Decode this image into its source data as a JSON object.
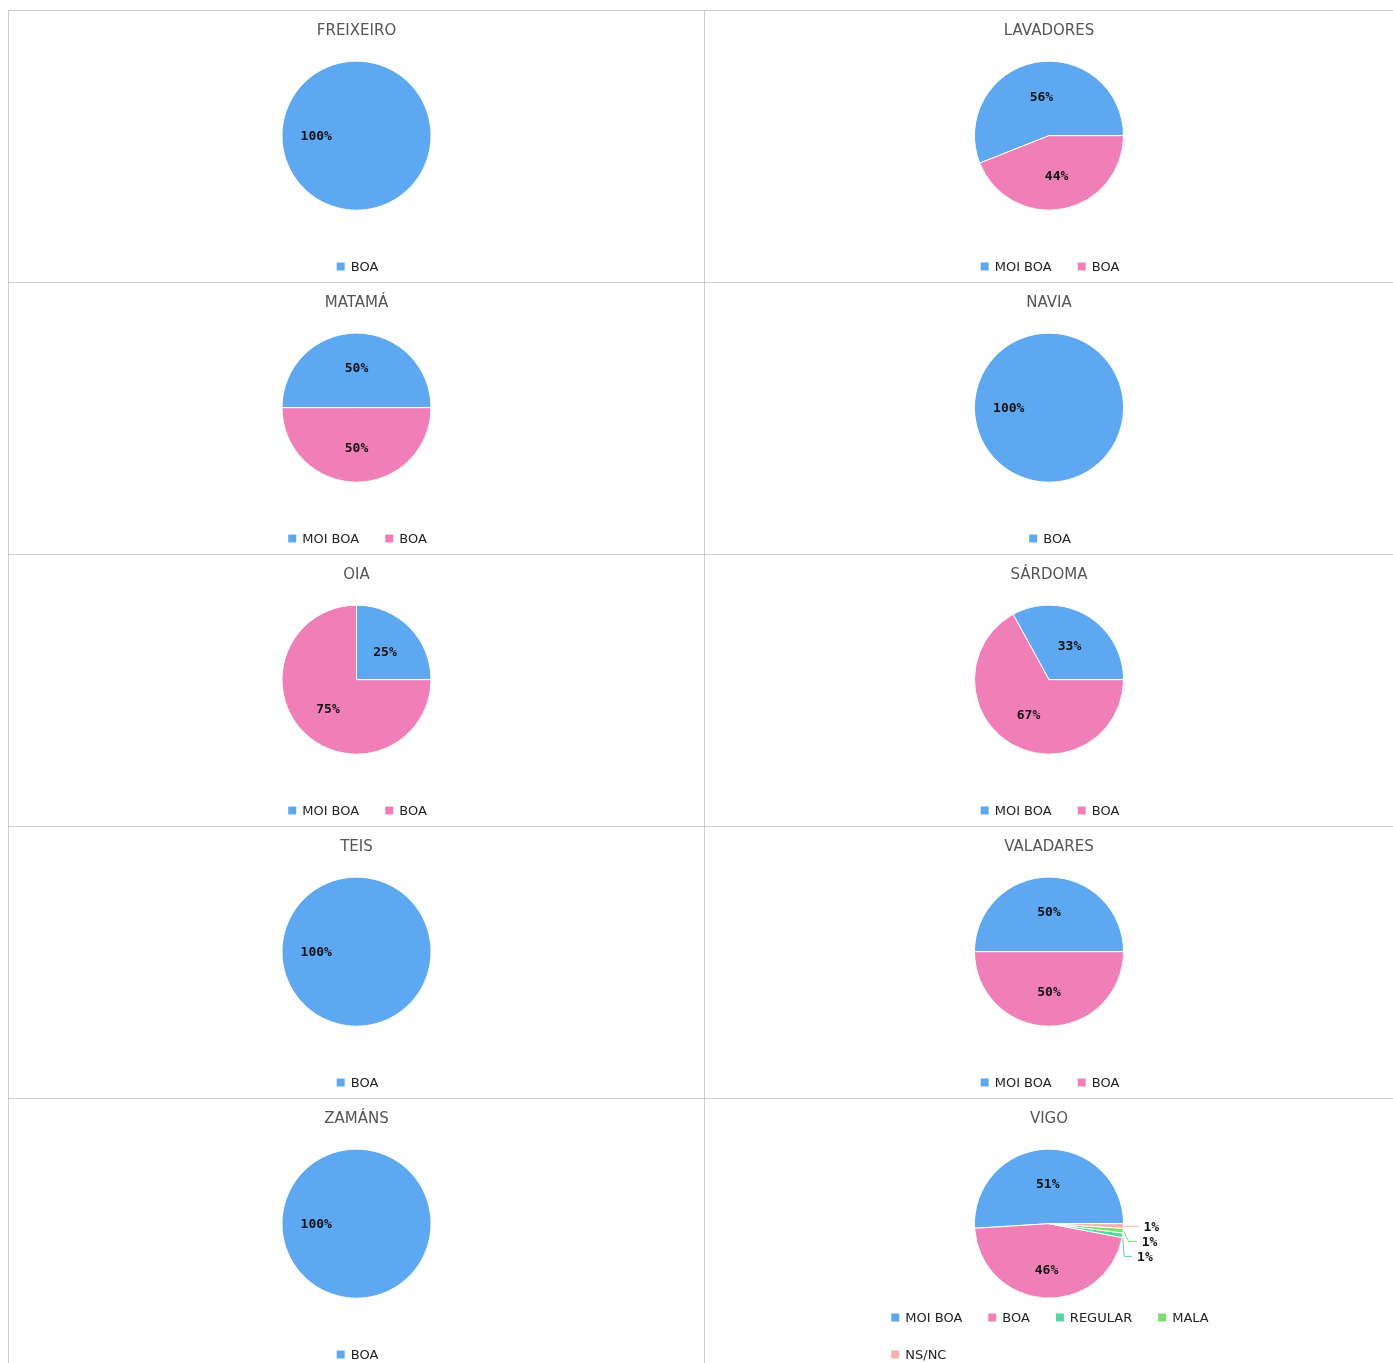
{
  "chart_data": [
    {
      "type": "pie",
      "title": "FREIXEIRO",
      "categories": [
        "BOA"
      ],
      "values": [
        100
      ],
      "colors": [
        "#5ea8f2"
      ],
      "value_labels": [
        "100%"
      ],
      "legend": "bottom"
    },
    {
      "type": "pie",
      "title": "LAVADORES",
      "categories": [
        "MOI BOA",
        "BOA"
      ],
      "values": [
        56,
        44
      ],
      "colors": [
        "#5ea8f2",
        "#f07fb8"
      ],
      "value_labels": [
        "56%",
        "44%"
      ],
      "legend": "bottom"
    },
    {
      "type": "pie",
      "title": "MATAMÁ",
      "categories": [
        "MOI BOA",
        "BOA"
      ],
      "values": [
        50,
        50
      ],
      "colors": [
        "#5ea8f2",
        "#f07fb8"
      ],
      "value_labels": [
        "50%",
        "50%"
      ],
      "legend": "bottom"
    },
    {
      "type": "pie",
      "title": "NAVIA",
      "categories": [
        "BOA"
      ],
      "values": [
        100
      ],
      "colors": [
        "#5ea8f2"
      ],
      "value_labels": [
        "100%"
      ],
      "legend": "bottom"
    },
    {
      "type": "pie",
      "title": "OIA",
      "categories": [
        "MOI BOA",
        "BOA"
      ],
      "values": [
        25,
        75
      ],
      "colors": [
        "#5ea8f2",
        "#f07fb8"
      ],
      "value_labels": [
        "25%",
        "75%"
      ],
      "legend": "bottom"
    },
    {
      "type": "pie",
      "title": "SÁRDOMA",
      "categories": [
        "MOI BOA",
        "BOA"
      ],
      "values": [
        33,
        67
      ],
      "colors": [
        "#5ea8f2",
        "#f07fb8"
      ],
      "value_labels": [
        "33%",
        "67%"
      ],
      "legend": "bottom"
    },
    {
      "type": "pie",
      "title": "TEIS",
      "categories": [
        "BOA"
      ],
      "values": [
        100
      ],
      "colors": [
        "#5ea8f2"
      ],
      "value_labels": [
        "100%"
      ],
      "legend": "bottom"
    },
    {
      "type": "pie",
      "title": "VALADARES",
      "categories": [
        "MOI BOA",
        "BOA"
      ],
      "values": [
        50,
        50
      ],
      "colors": [
        "#5ea8f2",
        "#f07fb8"
      ],
      "value_labels": [
        "50%",
        "50%"
      ],
      "legend": "bottom"
    },
    {
      "type": "pie",
      "title": "ZAMÁNS",
      "categories": [
        "BOA"
      ],
      "values": [
        100
      ],
      "colors": [
        "#5ea8f2"
      ],
      "value_labels": [
        "100%"
      ],
      "legend": "bottom"
    },
    {
      "type": "pie",
      "title": "VIGO",
      "categories": [
        "MOI BOA",
        "BOA",
        "REGULAR",
        "MALA",
        "NS/NC"
      ],
      "values": [
        51,
        46,
        1,
        1,
        1
      ],
      "colors": [
        "#5ea8f2",
        "#f07fb8",
        "#55d6a0",
        "#7ddc6e",
        "#f5b0aa"
      ],
      "value_labels": [
        "51%",
        "46%",
        "1%",
        "1%",
        "1%"
      ],
      "legend": "bottom"
    }
  ]
}
